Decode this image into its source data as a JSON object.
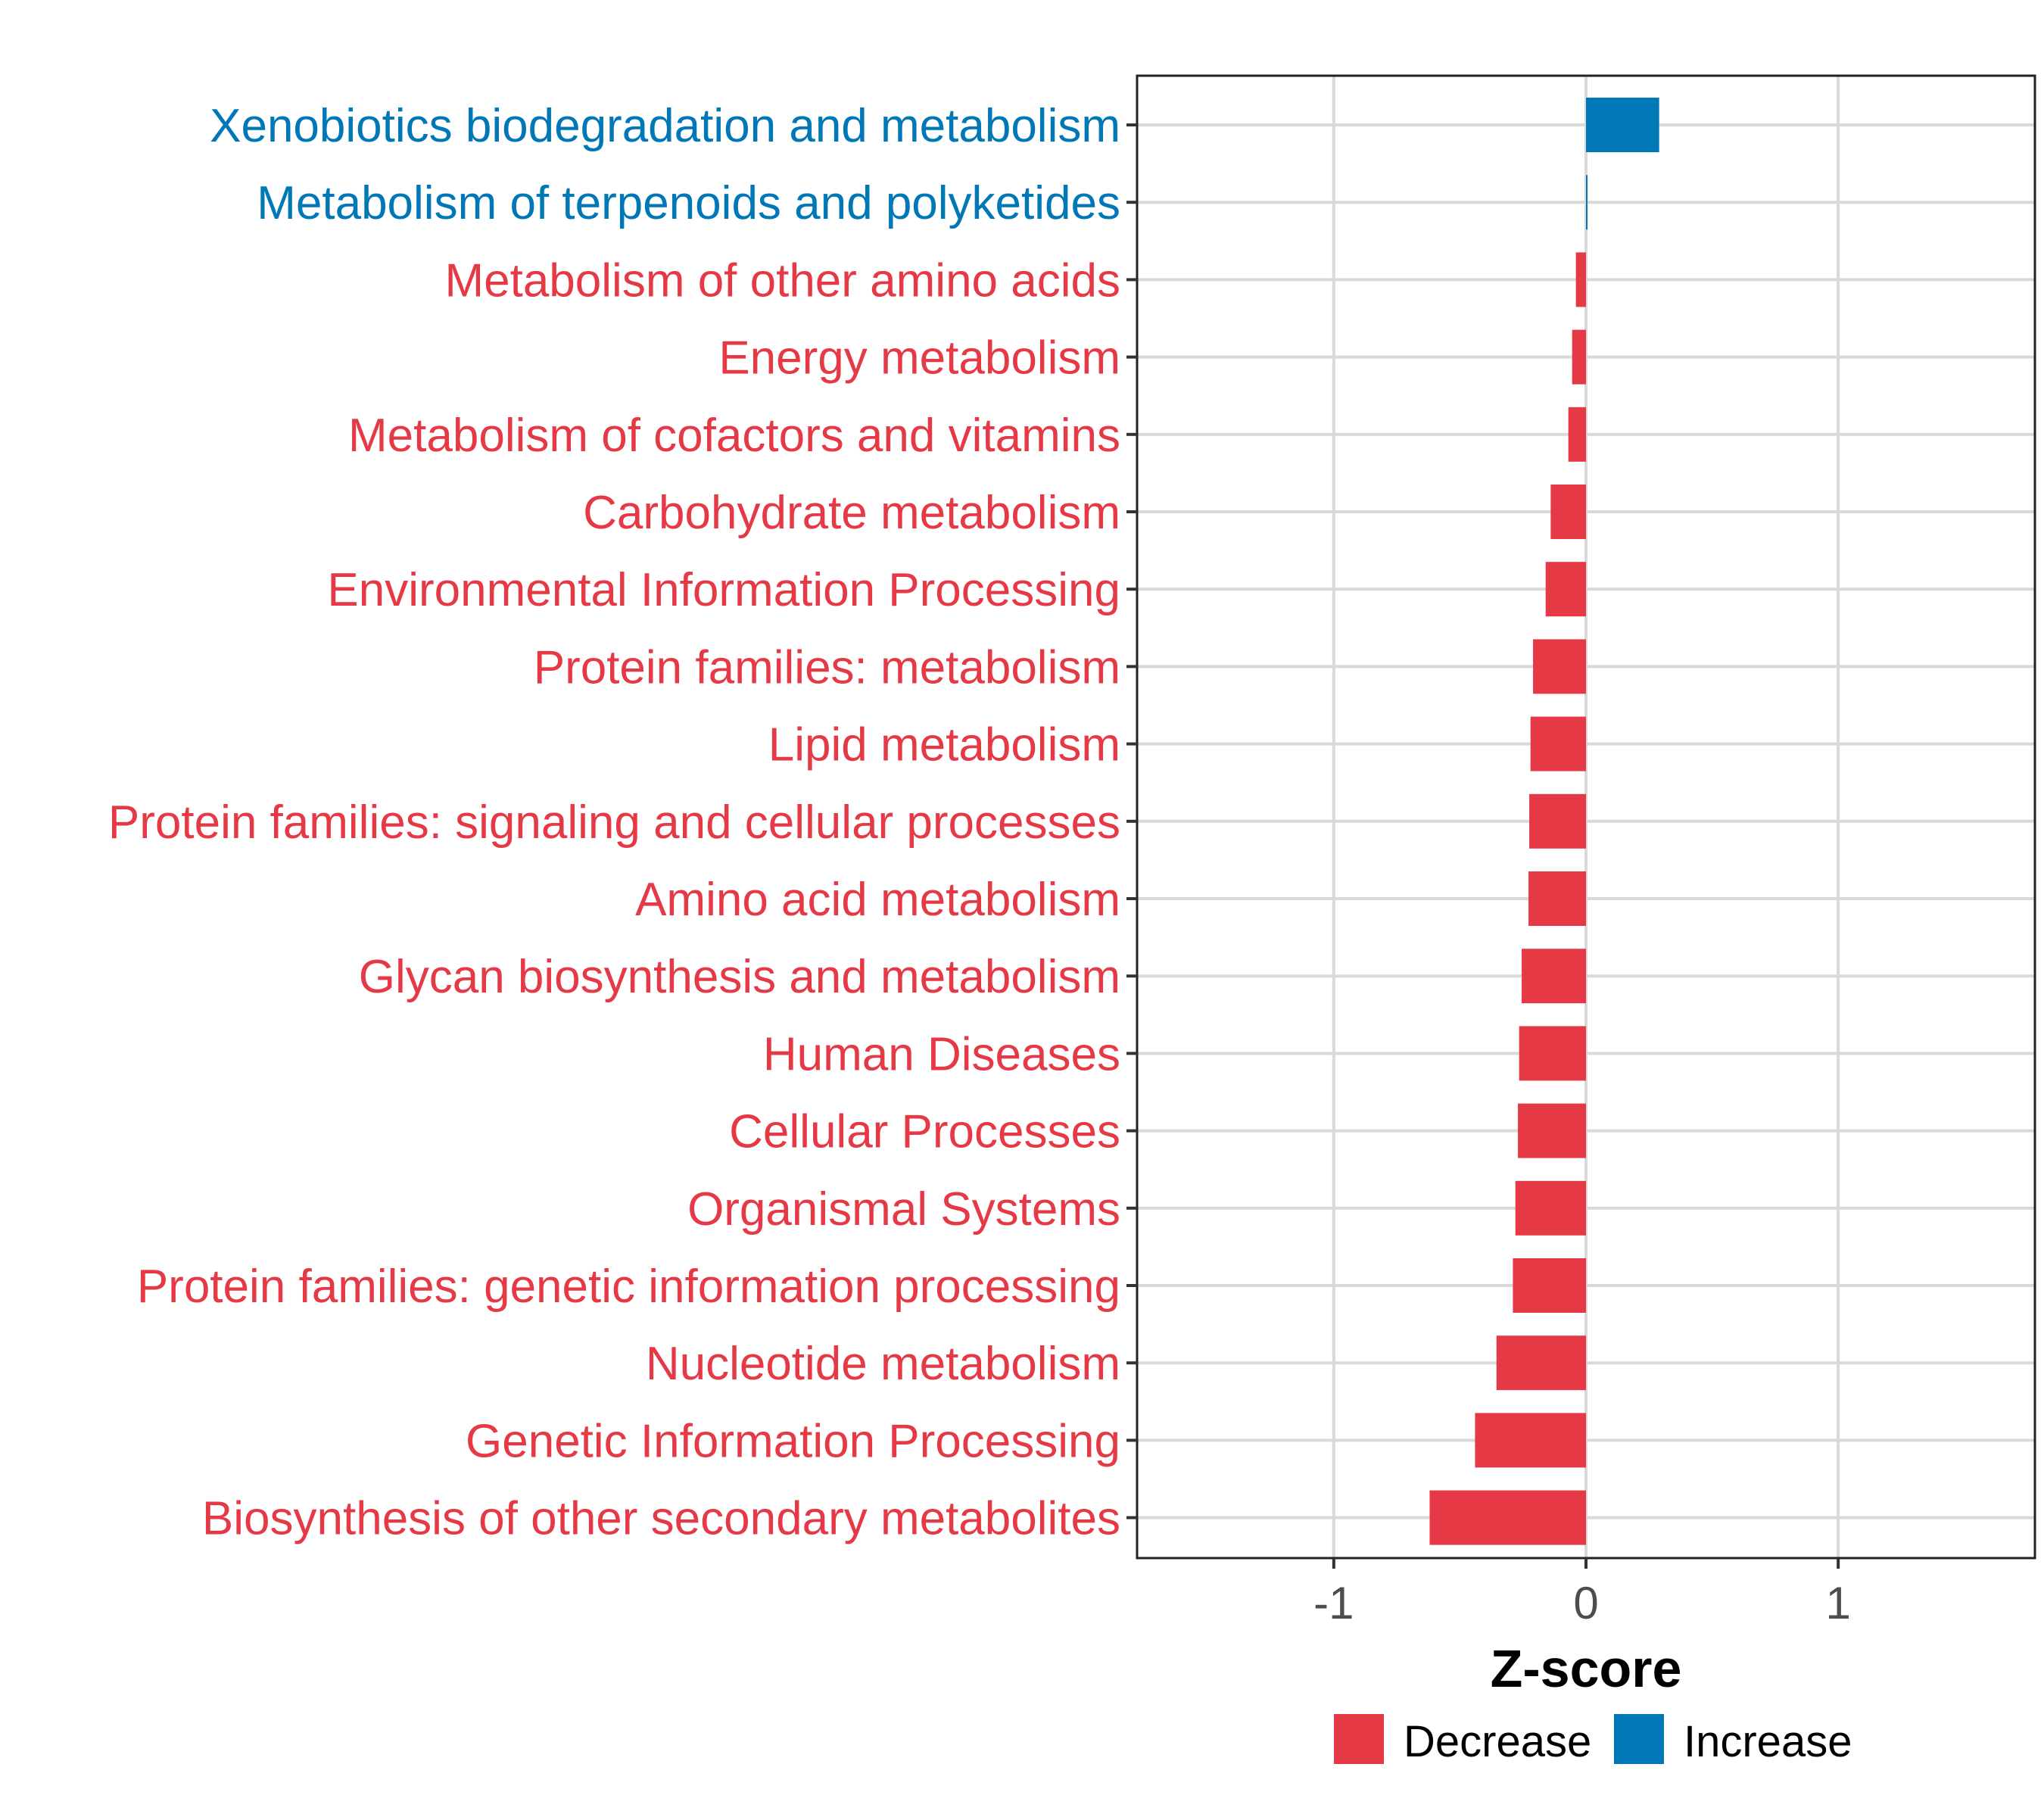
{
  "chart_data": {
    "type": "bar",
    "orientation": "horizontal",
    "categories": [
      "Xenobiotics biodegradation and metabolism",
      "Metabolism of terpenoids and polyketides",
      "Metabolism of other amino acids",
      "Energy metabolism",
      "Metabolism of cofactors and vitamins",
      "Carbohydrate metabolism",
      "Environmental Information Processing",
      "Protein families: metabolism",
      "Lipid metabolism",
      "Protein families: signaling and cellular processes",
      "Amino acid metabolism",
      "Glycan biosynthesis and metabolism",
      "Human Diseases",
      "Cellular Processes",
      "Organismal Systems",
      "Protein families: genetic information processing",
      "Nucleotide metabolism",
      "Genetic Information Processing",
      "Biosynthesis of other secondary metabolites"
    ],
    "values": [
      0.29,
      0.005,
      -0.04,
      -0.055,
      -0.07,
      -0.14,
      -0.16,
      -0.21,
      -0.22,
      -0.225,
      -0.228,
      -0.255,
      -0.265,
      -0.27,
      -0.28,
      -0.29,
      -0.355,
      -0.44,
      -0.62
    ],
    "groups": [
      "Increase",
      "Increase",
      "Decrease",
      "Decrease",
      "Decrease",
      "Decrease",
      "Decrease",
      "Decrease",
      "Decrease",
      "Decrease",
      "Decrease",
      "Decrease",
      "Decrease",
      "Decrease",
      "Decrease",
      "Decrease",
      "Decrease",
      "Decrease",
      "Decrease"
    ],
    "title": "",
    "xlabel": "Z-score",
    "ylabel": "",
    "xlim": [
      -1.78,
      1.78
    ],
    "xticks": [
      -1,
      0,
      1
    ],
    "xtick_labels": [
      "-1",
      "0",
      "1"
    ],
    "grid": true,
    "legend": {
      "placement": "bottom",
      "entries": [
        {
          "label": "Decrease",
          "color": "#e63946"
        },
        {
          "label": "Increase",
          "color": "#0077b6"
        }
      ]
    },
    "colors": {
      "Decrease": "#e63946",
      "Increase": "#0077b6"
    }
  }
}
